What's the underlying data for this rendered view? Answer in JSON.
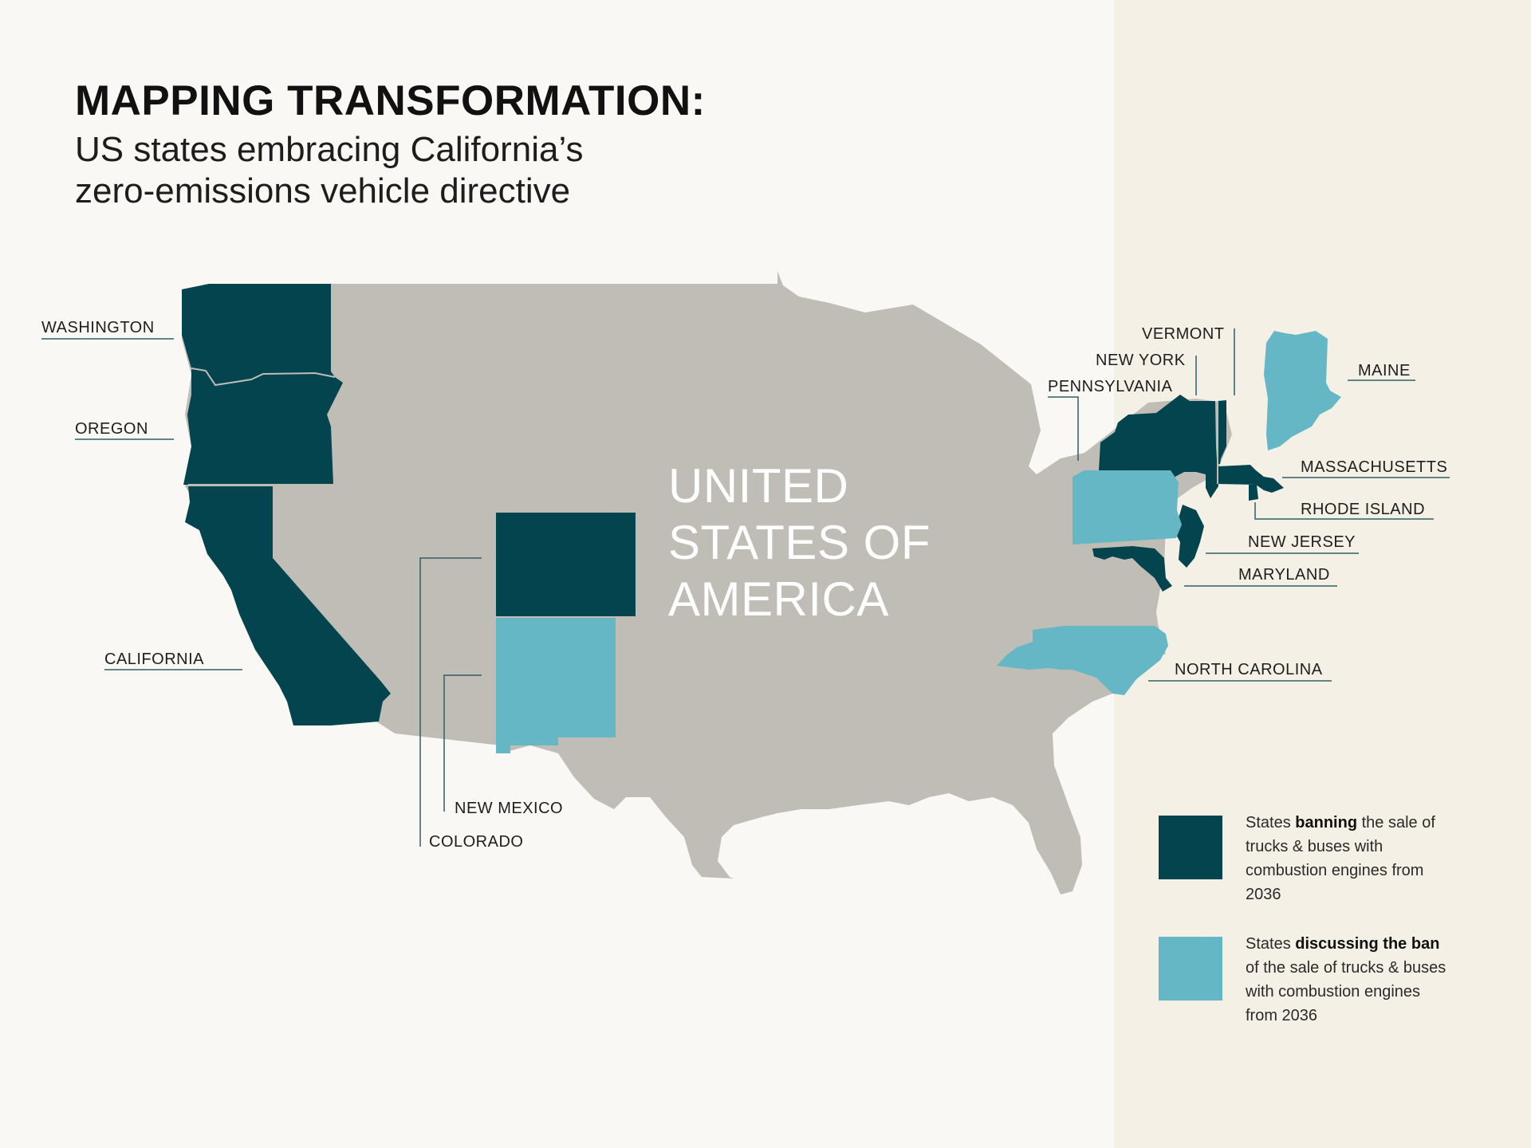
{
  "title": "MAPPING TRANSFORMATION:",
  "subtitle": {
    "line1": "US states embracing California’s",
    "line2": "zero-emissions vehicle directive"
  },
  "country_label": {
    "line1": "UNITED",
    "line2": "STATES OF",
    "line3": "AMERICA"
  },
  "colors": {
    "banning": "#03444f",
    "discussing": "#65b7c6",
    "country": "#bfbdb5",
    "background": "#f9f8f4",
    "side_panel": "#f4f0e6"
  },
  "states": {
    "washington": {
      "name": "WASHINGTON",
      "status": "banning"
    },
    "oregon": {
      "name": "OREGON",
      "status": "banning"
    },
    "california": {
      "name": "CALIFORNIA",
      "status": "banning"
    },
    "colorado": {
      "name": "COLORADO",
      "status": "banning"
    },
    "new_mexico": {
      "name": "NEW MEXICO",
      "status": "discussing"
    },
    "vermont": {
      "name": "VERMONT",
      "status": "banning"
    },
    "new_york": {
      "name": "NEW YORK",
      "status": "banning"
    },
    "pennsylvania": {
      "name": "PENNSYLVANIA",
      "status": "discussing"
    },
    "maine": {
      "name": "MAINE",
      "status": "discussing"
    },
    "massachusetts": {
      "name": "MASSACHUSETTS",
      "status": "banning"
    },
    "rhode_island": {
      "name": "RHODE ISLAND",
      "status": "banning"
    },
    "new_jersey": {
      "name": "NEW JERSEY",
      "status": "banning"
    },
    "maryland": {
      "name": "MARYLAND",
      "status": "banning"
    },
    "north_carolina": {
      "name": "NORTH CAROLINA",
      "status": "discussing"
    }
  },
  "legend": {
    "banning": {
      "prefix": "States ",
      "bold": "banning",
      "suffix": " the sale of trucks & buses with combustion engines from 2036"
    },
    "discussing": {
      "prefix": "States ",
      "bold": "discussing the ban",
      "suffix": " of the sale of trucks & buses with combustion engines from 2036"
    }
  }
}
